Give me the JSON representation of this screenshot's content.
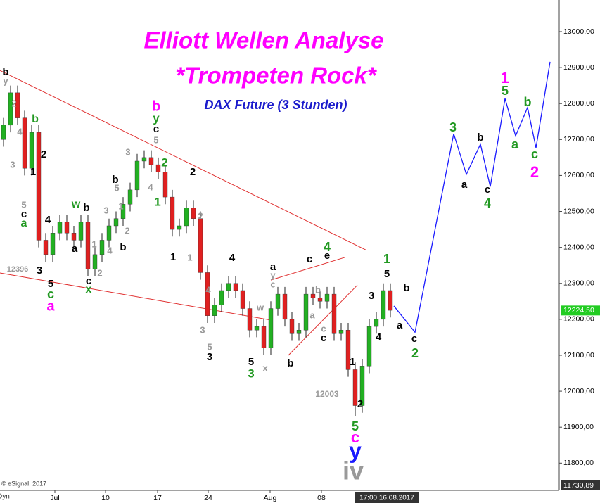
{
  "chart_data": {
    "type": "candlestick",
    "title": "Elliott Wellen Analyse",
    "subtitle": "*Trompeten Rock*",
    "instrument": "DAX Future (3 Stunden)",
    "copyright": "© eSignal, 2017",
    "mode": "Dyn",
    "up_color": "#22b022",
    "down_color": "#e02020",
    "open": [
      12700,
      12740,
      12830,
      12760,
      12620,
      12720,
      12420,
      12380,
      12440,
      12470,
      12440,
      12420,
      12470,
      12340,
      12380,
      12420,
      12460,
      12480,
      12520,
      12560,
      12640,
      12650,
      12630,
      12610,
      12540,
      12450,
      12460,
      12510,
      12480,
      12330,
      12210,
      12240,
      12280,
      12300,
      12280,
      12230,
      12170,
      12180,
      12120,
      12230,
      12270,
      12200,
      12160,
      12170,
      12270,
      12260,
      12250,
      12270,
      12160,
      12170,
      12060,
      11960,
      12070,
      12180,
      12200,
      12280
    ],
    "high": [
      12760,
      12850,
      12850,
      12780,
      12740,
      12740,
      12440,
      12460,
      12490,
      12490,
      12460,
      12490,
      12490,
      12400,
      12440,
      12480,
      12500,
      12540,
      12580,
      12660,
      12670,
      12670,
      12650,
      12630,
      12560,
      12480,
      12530,
      12530,
      12500,
      12350,
      12260,
      12300,
      12320,
      12320,
      12300,
      12250,
      12200,
      12200,
      12250,
      12290,
      12290,
      12220,
      12190,
      12290,
      12290,
      12280,
      12290,
      12290,
      12190,
      12190,
      12080,
      12090,
      12200,
      12220,
      12300,
      12300
    ],
    "low": [
      12680,
      12720,
      12740,
      12600,
      12600,
      12400,
      12360,
      12360,
      12420,
      12420,
      12400,
      12400,
      12320,
      12320,
      12360,
      12400,
      12440,
      12460,
      12500,
      12540,
      12620,
      12610,
      12590,
      12520,
      12430,
      12430,
      12440,
      12460,
      12310,
      12190,
      12190,
      12220,
      12260,
      12260,
      12210,
      12150,
      12150,
      12100,
      12100,
      12210,
      12180,
      12140,
      12140,
      12150,
      12240,
      12230,
      12230,
      12140,
      12140,
      12040,
      11930,
      11940,
      12050,
      12160,
      12180,
      12205
    ],
    "close": [
      12740,
      12830,
      12760,
      12620,
      12720,
      12420,
      12380,
      12440,
      12470,
      12440,
      12420,
      12470,
      12340,
      12380,
      12420,
      12460,
      12480,
      12520,
      12560,
      12640,
      12650,
      12630,
      12610,
      12540,
      12450,
      12460,
      12510,
      12480,
      12330,
      12210,
      12240,
      12280,
      12300,
      12280,
      12230,
      12170,
      12180,
      12120,
      12230,
      12270,
      12200,
      12160,
      12170,
      12270,
      12260,
      12250,
      12270,
      12160,
      12170,
      12060,
      11960,
      12070,
      12180,
      12200,
      12280,
      12225
    ],
    "xlim": [
      -0.5,
      79
    ],
    "ylim": [
      11738,
      13088
    ],
    "xticks": [
      {
        "value": 7.3,
        "label": "Jul"
      },
      {
        "value": 14.5,
        "label": "10"
      },
      {
        "value": 21.9,
        "label": "17"
      },
      {
        "value": 29.1,
        "label": "24"
      },
      {
        "value": 37.9,
        "label": "Aug"
      },
      {
        "value": 45.2,
        "label": "08"
      }
    ],
    "cursor_tick": {
      "value": 54.5,
      "label": "17:00 16.08.2017"
    },
    "yticks": [
      {
        "value": 11800,
        "label": "11800,00"
      },
      {
        "value": 11900,
        "label": "11900,00"
      },
      {
        "value": 12000,
        "label": "12000,00"
      },
      {
        "value": 12100,
        "label": "12100,00"
      },
      {
        "value": 12200,
        "label": "12200,00"
      },
      {
        "value": 12300,
        "label": "12300,00"
      },
      {
        "value": 12400,
        "label": "12400,00"
      },
      {
        "value": 12500,
        "label": "12500,00"
      },
      {
        "value": 12600,
        "label": "12600,00"
      },
      {
        "value": 12700,
        "label": "12700,00"
      },
      {
        "value": 12800,
        "label": "12800,00"
      },
      {
        "value": 12900,
        "label": "12900,00"
      },
      {
        "value": 13000,
        "label": "13000,00"
      }
    ],
    "last_price": {
      "value": 12224.5,
      "label": "12224,50",
      "color": "#22cc22"
    },
    "low_price": {
      "value": 11730.89,
      "label": "11730,89",
      "color": "#333333"
    },
    "trendlines": [
      {
        "color": "#e03030",
        "x": [
          -0.5,
          51.5
        ],
        "values": [
          12892,
          12393
        ]
      },
      {
        "color": "#e03030",
        "x": [
          -0.5,
          38
        ],
        "values": [
          12329,
          12198
        ]
      },
      {
        "color": "#e03030",
        "x": [
          38,
          48.5
        ],
        "values": [
          12309,
          12372
        ]
      },
      {
        "color": "#e03030",
        "x": [
          40.5,
          50.3
        ],
        "values": [
          12100,
          12295
        ]
      }
    ],
    "forecast": {
      "color": "#1a1aff",
      "x": [
        55.5,
        58.5,
        64,
        65.8,
        67.8,
        69.2,
        71.3,
        72.8,
        74.5,
        75.7,
        77.7
      ],
      "values": [
        12237,
        12164,
        12716,
        12603,
        12687,
        12569,
        12814,
        12710,
        12789,
        12677,
        12916
      ]
    },
    "annotations": [
      {
        "text": "b",
        "color": "#000000"
      },
      {
        "text": "y",
        "color": "#999999"
      },
      {
        "text": "2",
        "color": "#999999"
      },
      {
        "text": "4",
        "color": "#999999"
      },
      {
        "text": "3",
        "color": "#999999"
      },
      {
        "text": "1",
        "color": "#000000"
      },
      {
        "text": "2",
        "color": "#000000"
      },
      {
        "text": "b",
        "color": "#229922"
      },
      {
        "text": "5",
        "color": "#999999"
      },
      {
        "text": "c",
        "color": "#000000"
      },
      {
        "text": "a",
        "color": "#229922"
      },
      {
        "text": "4",
        "color": "#000000"
      },
      {
        "text": "3",
        "color": "#000000"
      },
      {
        "text": "5",
        "color": "#000000"
      },
      {
        "text": "c",
        "color": "#229922"
      },
      {
        "text": "a",
        "color": "#ff00ff"
      },
      {
        "text": "12396",
        "color": "#999999"
      },
      {
        "text": "a",
        "color": "#000000"
      },
      {
        "text": "w",
        "color": "#229922"
      },
      {
        "text": "b",
        "color": "#000000"
      },
      {
        "text": "c",
        "color": "#000000"
      },
      {
        "text": "x",
        "color": "#229922"
      },
      {
        "text": "1",
        "color": "#999999"
      },
      {
        "text": "2",
        "color": "#999999"
      },
      {
        "text": "4",
        "color": "#999999"
      },
      {
        "text": "3",
        "color": "#999999"
      },
      {
        "text": "b",
        "color": "#000000"
      },
      {
        "text": "5",
        "color": "#999999"
      },
      {
        "text": "1",
        "color": "#999999"
      },
      {
        "text": "2",
        "color": "#999999"
      },
      {
        "text": "b",
        "color": "#000000"
      },
      {
        "text": "3",
        "color": "#999999"
      },
      {
        "text": "b",
        "color": "#ff00ff"
      },
      {
        "text": "y",
        "color": "#229922"
      },
      {
        "text": "c",
        "color": "#000000"
      },
      {
        "text": "5",
        "color": "#999999"
      },
      {
        "text": "2",
        "color": "#229922"
      },
      {
        "text": "4",
        "color": "#999999"
      },
      {
        "text": "1",
        "color": "#229922"
      },
      {
        "text": "2",
        "color": "#000000"
      },
      {
        "text": "2",
        "color": "#999999"
      },
      {
        "text": "1",
        "color": "#999999"
      },
      {
        "text": "1",
        "color": "#000000"
      },
      {
        "text": "4",
        "color": "#999999"
      },
      {
        "text": "3",
        "color": "#999999"
      },
      {
        "text": "5",
        "color": "#999999"
      },
      {
        "text": "3",
        "color": "#000000"
      },
      {
        "text": "4",
        "color": "#000000"
      },
      {
        "text": "w",
        "color": "#999999"
      },
      {
        "text": "5",
        "color": "#000000"
      },
      {
        "text": "3",
        "color": "#229922"
      },
      {
        "text": "x",
        "color": "#999999"
      },
      {
        "text": "a",
        "color": "#000000"
      },
      {
        "text": "y",
        "color": "#999999"
      },
      {
        "text": "c",
        "color": "#999999"
      },
      {
        "text": "b",
        "color": "#999999"
      },
      {
        "text": "a",
        "color": "#999999"
      },
      {
        "text": "c",
        "color": "#000000"
      },
      {
        "text": "e",
        "color": "#000000"
      },
      {
        "text": "4",
        "color": "#229922"
      },
      {
        "text": "c",
        "color": "#999999"
      },
      {
        "text": "c",
        "color": "#000000"
      },
      {
        "text": "b",
        "color": "#000000"
      },
      {
        "text": "12003",
        "color": "#999999"
      },
      {
        "text": "1",
        "color": "#000000"
      },
      {
        "text": "2",
        "color": "#000000"
      },
      {
        "text": "5",
        "color": "#229922"
      },
      {
        "text": "c",
        "color": "#ff00ff"
      },
      {
        "text": "y",
        "color": "#1a1aff"
      },
      {
        "text": "iv",
        "color": "#999999"
      },
      {
        "text": "3",
        "color": "#000000"
      },
      {
        "text": "4",
        "color": "#000000"
      },
      {
        "text": "1",
        "color": "#229922"
      },
      {
        "text": "5",
        "color": "#000000"
      },
      {
        "text": "b",
        "color": "#000000"
      },
      {
        "text": "a",
        "color": "#000000"
      },
      {
        "text": "c",
        "color": "#000000"
      },
      {
        "text": "2",
        "color": "#229922"
      },
      {
        "text": "3",
        "color": "#229922"
      },
      {
        "text": "b",
        "color": "#000000"
      },
      {
        "text": "a",
        "color": "#000000"
      },
      {
        "text": "c",
        "color": "#000000"
      },
      {
        "text": "4",
        "color": "#229922"
      },
      {
        "text": "1",
        "color": "#ff00ff"
      },
      {
        "text": "5",
        "color": "#229922"
      },
      {
        "text": "b",
        "color": "#229922"
      },
      {
        "text": "a",
        "color": "#229922"
      },
      {
        "text": "c",
        "color": "#229922"
      },
      {
        "text": "2",
        "color": "#ff00ff"
      }
    ]
  }
}
